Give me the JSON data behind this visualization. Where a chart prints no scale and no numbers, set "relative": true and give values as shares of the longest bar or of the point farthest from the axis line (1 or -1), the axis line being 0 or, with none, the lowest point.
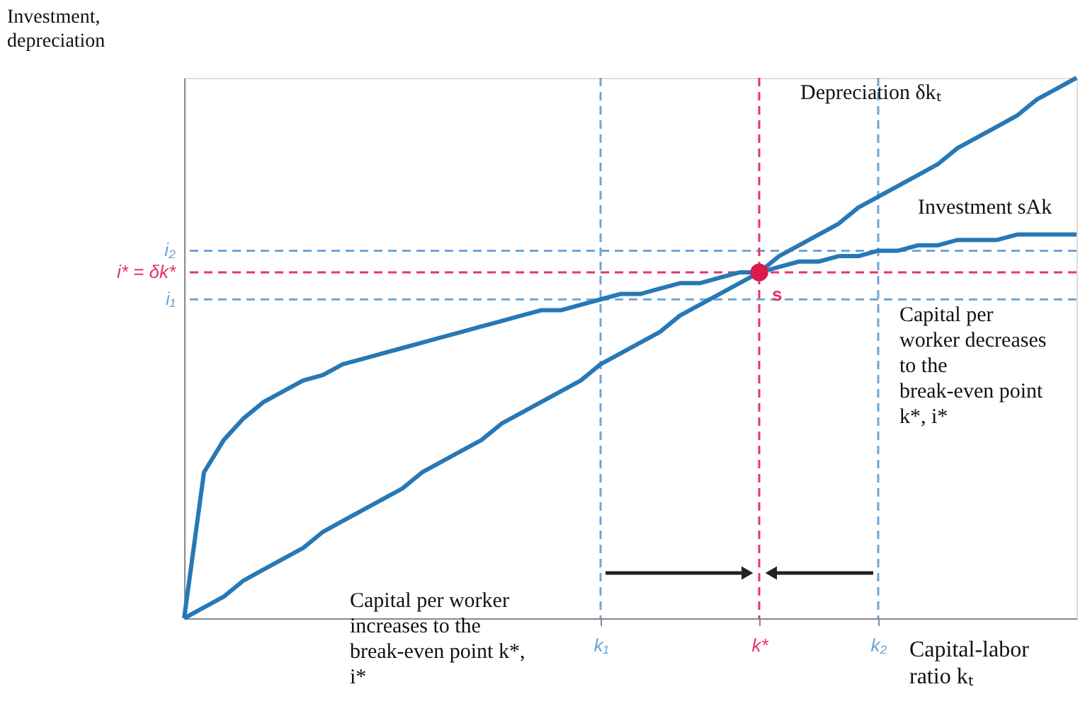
{
  "chart_data": {
    "type": "line",
    "relative": true,
    "ylabel": "Investment, depreciation",
    "xlabel": "Capital-labor ratio kₜ",
    "categories": [
      null,
      null,
      null,
      null,
      null,
      null,
      null,
      null,
      null,
      null,
      null,
      null,
      null,
      null,
      null,
      null,
      null,
      null,
      null,
      null,
      null,
      "k₁",
      null,
      null,
      null,
      null,
      null,
      null,
      null,
      "k*",
      null,
      null,
      null,
      null,
      null,
      "k₂",
      null,
      null,
      null,
      null,
      null,
      null,
      null,
      null,
      null,
      null
    ],
    "series": [
      {
        "name": "Depreciation δkₜ",
        "color": "#2878b5",
        "values": [
          0,
          0.02,
          0.04,
          0.07,
          0.09,
          0.11,
          0.13,
          0.16,
          0.18,
          0.2,
          0.22,
          0.24,
          0.27,
          0.29,
          0.31,
          0.33,
          0.36,
          0.38,
          0.4,
          0.42,
          0.44,
          0.47,
          0.49,
          0.51,
          0.53,
          0.56,
          0.58,
          0.6,
          0.62,
          0.64,
          0.67,
          0.69,
          0.71,
          0.73,
          0.76,
          0.78,
          0.8,
          0.82,
          0.84,
          0.87,
          0.89,
          0.91,
          0.93,
          0.96,
          0.98,
          1.0
        ]
      },
      {
        "name": "Investment sAk",
        "color": "#2878b5",
        "values": [
          0,
          0.27,
          0.33,
          0.37,
          0.4,
          0.42,
          0.44,
          0.45,
          0.47,
          0.48,
          0.49,
          0.5,
          0.51,
          0.52,
          0.53,
          0.54,
          0.55,
          0.56,
          0.57,
          0.57,
          0.58,
          0.59,
          0.6,
          0.6,
          0.61,
          0.62,
          0.62,
          0.63,
          0.64,
          0.64,
          0.65,
          0.66,
          0.66,
          0.67,
          0.67,
          0.68,
          0.68,
          0.69,
          0.69,
          0.7,
          0.7,
          0.7,
          0.71,
          0.71,
          0.71,
          0.71
        ]
      },
      {
        "type": "scatter",
        "marker": "circle",
        "color": "#d81b4a",
        "values": [
          null,
          null,
          null,
          null,
          null,
          null,
          null,
          null,
          null,
          null,
          null,
          null,
          null,
          null,
          null,
          null,
          null,
          null,
          null,
          null,
          null,
          null,
          null,
          null,
          null,
          null,
          null,
          null,
          null,
          0.64,
          null,
          null,
          null,
          null,
          null,
          null,
          null,
          null,
          null,
          null,
          null,
          null,
          null,
          null,
          null,
          null
        ]
      }
    ],
    "ref_lines": [
      {
        "axis": "y",
        "value": 0.68,
        "label": "i₂",
        "color": "#6ea6d6",
        "line_style": "dashed"
      },
      {
        "axis": "y",
        "value": 0.64,
        "label": "i* = δk*",
        "color": "#e8336d",
        "line_style": "dashed"
      },
      {
        "axis": "y",
        "value": 0.59,
        "label": "i₁",
        "color": "#6ea6d6",
        "line_style": "dashed"
      },
      {
        "axis": "x",
        "value": "k₁",
        "color": "#6ea6d6",
        "line_style": "dashed"
      },
      {
        "axis": "x",
        "value": "k*",
        "color": "#e8336d",
        "line_style": "dashed"
      },
      {
        "axis": "x",
        "value": "k₂",
        "color": "#6ea6d6",
        "line_style": "dashed"
      }
    ],
    "annotations": [
      "Capital per worker increases to the break-even point k*, i*",
      "Capital per worker decreases to the break-even point k*, i*",
      {
        "text": "s",
        "x": "k*",
        "y": 0.64
      }
    ]
  }
}
